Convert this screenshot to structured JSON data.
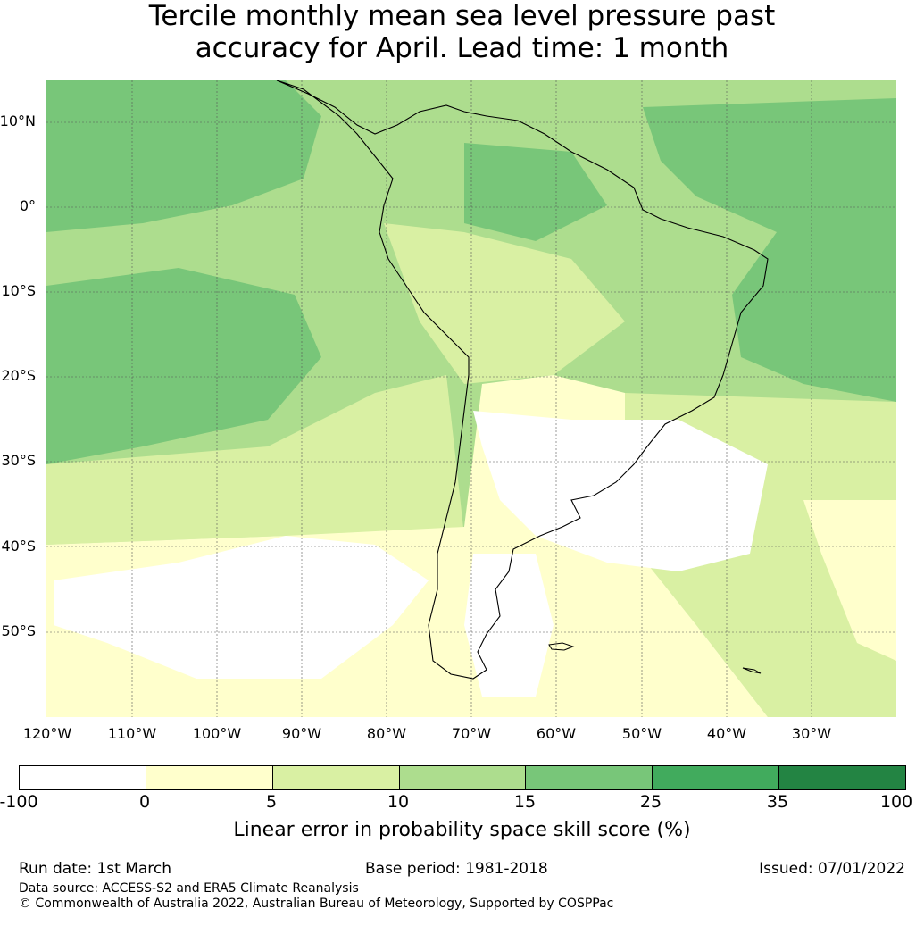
{
  "title": {
    "line1": "Tercile monthly mean sea level pressure past",
    "line2": "accuracy for April. Lead time: 1 month"
  },
  "map": {
    "lat_labels": [
      "10°N",
      "0°",
      "10°S",
      "20°S",
      "30°S",
      "40°S",
      "50°S"
    ],
    "lon_labels": [
      "120°W",
      "110°W",
      "100°W",
      "90°W",
      "80°W",
      "70°W",
      "60°W",
      "50°W",
      "40°W",
      "30°W"
    ]
  },
  "colorbar": {
    "ticks": [
      "-100",
      "0",
      "5",
      "10",
      "15",
      "25",
      "35",
      "100"
    ],
    "colors": [
      "#ffffff",
      "#ffffcc",
      "#d9f0a3",
      "#addd8e",
      "#78c679",
      "#41ab5d",
      "#238443"
    ],
    "label": "Linear error in probability space skill score (%)"
  },
  "footer": {
    "run_date": "Run date: 1st March",
    "base_period": "Base period: 1981-2018",
    "issued": "Issued: 07/01/2022",
    "data_source": "Data source: ACCESS-S2 and ERA5 Climate Reanalysis",
    "copyright": "© Commonwealth of Australia 2022, Australian Bureau of Meteorology, Supported by COSPPac"
  }
}
